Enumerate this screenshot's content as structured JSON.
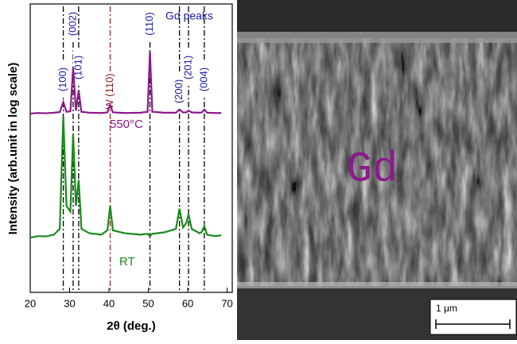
{
  "chart_data": {
    "type": "line",
    "y_label": "Intensity (arb.unit in log scale)",
    "x_label": "2θ (deg.)",
    "annotation": "Gd peaks",
    "xlim": [
      20,
      71.3
    ],
    "xticks": [
      20,
      30,
      40,
      50,
      60,
      70
    ],
    "ylim": [
      0,
      100
    ],
    "x": [
      20,
      22,
      24,
      26,
      27.5,
      28.4,
      29.2,
      30.2,
      30.9,
      31.6,
      32.3,
      33,
      35,
      38,
      39.6,
      40.3,
      41,
      44,
      48,
      49.8,
      50.4,
      51,
      54,
      57,
      57.9,
      58.8,
      59.6,
      60.2,
      61,
      63,
      63.6,
      64.2,
      64.9,
      67,
      68.5
    ],
    "series": [
      {
        "name": "550°C",
        "color": "#8b1a8b",
        "values": [
          62,
          62.2,
          62.1,
          62.3,
          62.5,
          66,
          62.6,
          62.8,
          78,
          63,
          70,
          62.6,
          62.3,
          62.2,
          62.4,
          65,
          62.4,
          62.2,
          62.3,
          62.6,
          83.5,
          62.6,
          62.3,
          62.3,
          63.4,
          62.4,
          62.4,
          63,
          62.4,
          62.3,
          62.4,
          63.4,
          62.3,
          62.2,
          62.2
        ]
      },
      {
        "name": "RT",
        "color": "#1a8a1a",
        "values": [
          19,
          19.5,
          19.4,
          20,
          22,
          61,
          30,
          28,
          55,
          30,
          39,
          22,
          20.5,
          20,
          21.5,
          30,
          21.5,
          20.5,
          20,
          20.3,
          19.5,
          20.3,
          20.8,
          22,
          29,
          22.5,
          24,
          27,
          22,
          20.5,
          21,
          23,
          20,
          19.5,
          19.8
        ]
      }
    ],
    "reference_lines": [
      {
        "x": 28.4,
        "label": "(100)",
        "color": "#000000"
      },
      {
        "x": 30.9,
        "label": "(002)",
        "color": "#000000"
      },
      {
        "x": 32.3,
        "label": "(101)",
        "color": "#000000"
      },
      {
        "x": 40.3,
        "label": "W (110)",
        "color": "#b22222"
      },
      {
        "x": 50.4,
        "label": "(110)",
        "color": "#000000"
      },
      {
        "x": 57.9,
        "label": "(200)",
        "color": "#000000"
      },
      {
        "x": 60.2,
        "label": "(201)",
        "color": "#000000"
      },
      {
        "x": 64.2,
        "label": "(004)",
        "color": "#000000"
      }
    ]
  },
  "image": {
    "label": "Gd",
    "scale_bar": "1 μm"
  }
}
